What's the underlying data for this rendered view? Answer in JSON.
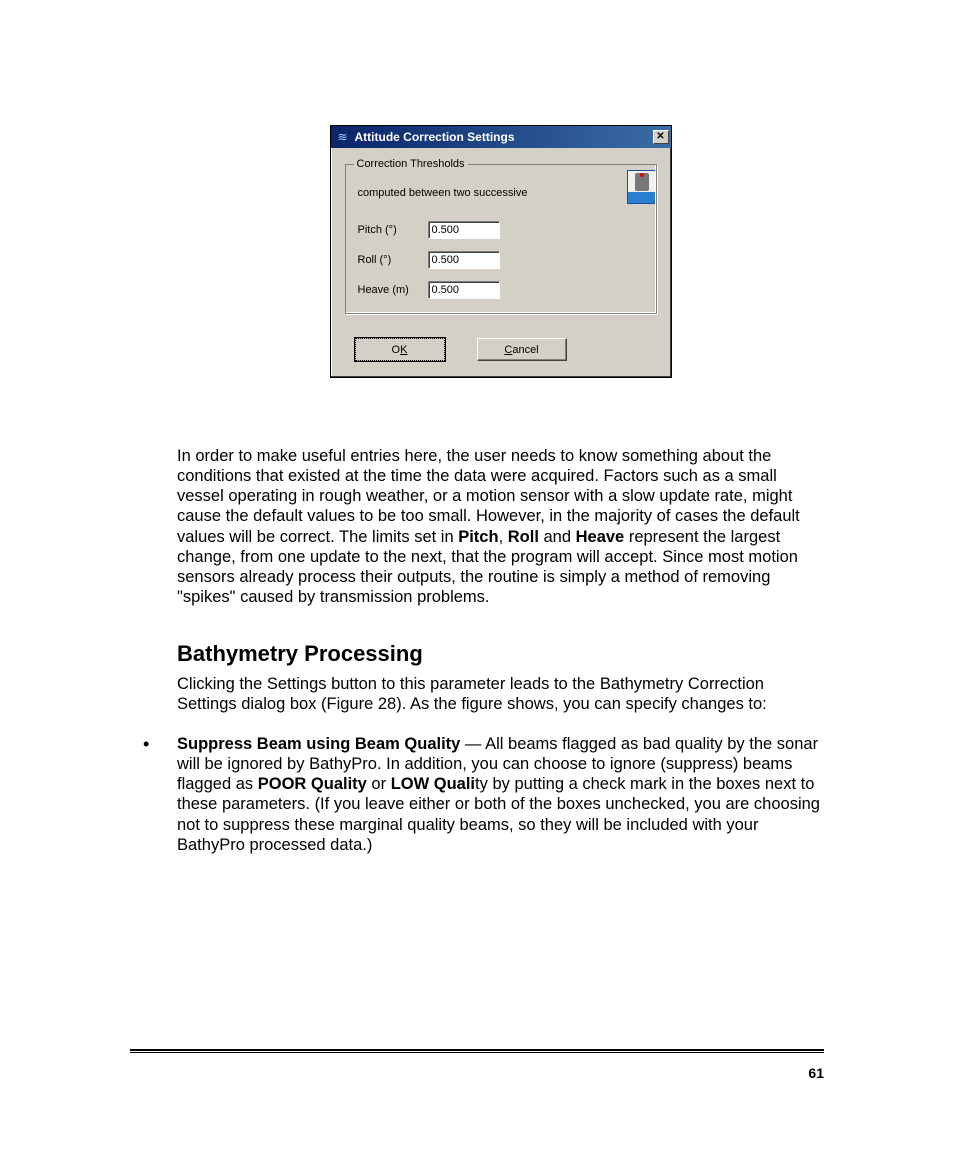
{
  "dialog": {
    "title": "Attitude Correction Settings",
    "close_glyph": "✕",
    "group": {
      "legend": "Correction Thresholds",
      "subtext": "computed between two successive",
      "fields": [
        {
          "label": "Pitch (°)",
          "value": "0.500"
        },
        {
          "label": "Roll (°)",
          "value": "0.500"
        },
        {
          "label": "Heave (m)",
          "value": "0.500"
        }
      ]
    },
    "buttons": {
      "ok_prefix": "O",
      "ok_ul": "K",
      "cancel_ul": "C",
      "cancel_suffix": "ancel"
    }
  },
  "text": {
    "para1_a": "In order to make useful entries here, the user needs to know something about the conditions that existed at the time the data were acquired. Factors such as a small vessel operating in rough weather, or a motion sensor with a slow update rate, might cause the default values to be too small. However, in the majority of cases the default values will be correct. The limits set in ",
    "b_pitch": "Pitch",
    "sep1": ", ",
    "b_roll": "Roll",
    "sep2": " and ",
    "b_heave": "Heave",
    "para1_b": " represent the largest change, from one update to the next, that the program will accept. Since most motion sensors already process their outputs, the routine is simply a method of removing \"spikes\" caused by transmission problems.",
    "h_bathy": "Bathymetry Processing",
    "para2": "Clicking the Settings button to this parameter leads to the Bathymetry Correction Settings dialog box (Figure 28). As the figure shows, you can specify changes to:",
    "li1_bold": "Suppress Beam using Beam Quality",
    "li1_dash": " — ",
    "li1_a": "All beams flagged as bad quality by the sonar will be ignored by BathyPro. In addition, you can choose to ignore (suppress) beams flagged as ",
    "li1_poor": "POOR Quality",
    "li1_or": " or ",
    "li1_low": "LOW Quali",
    "li1_b": "ty by putting a check mark in the boxes next to these parameters. (If you leave either or both of the boxes unchecked, you are choosing not to suppress these marginal quality beams, so they will be included with your BathyPro processed data.)"
  },
  "page_number": "61"
}
